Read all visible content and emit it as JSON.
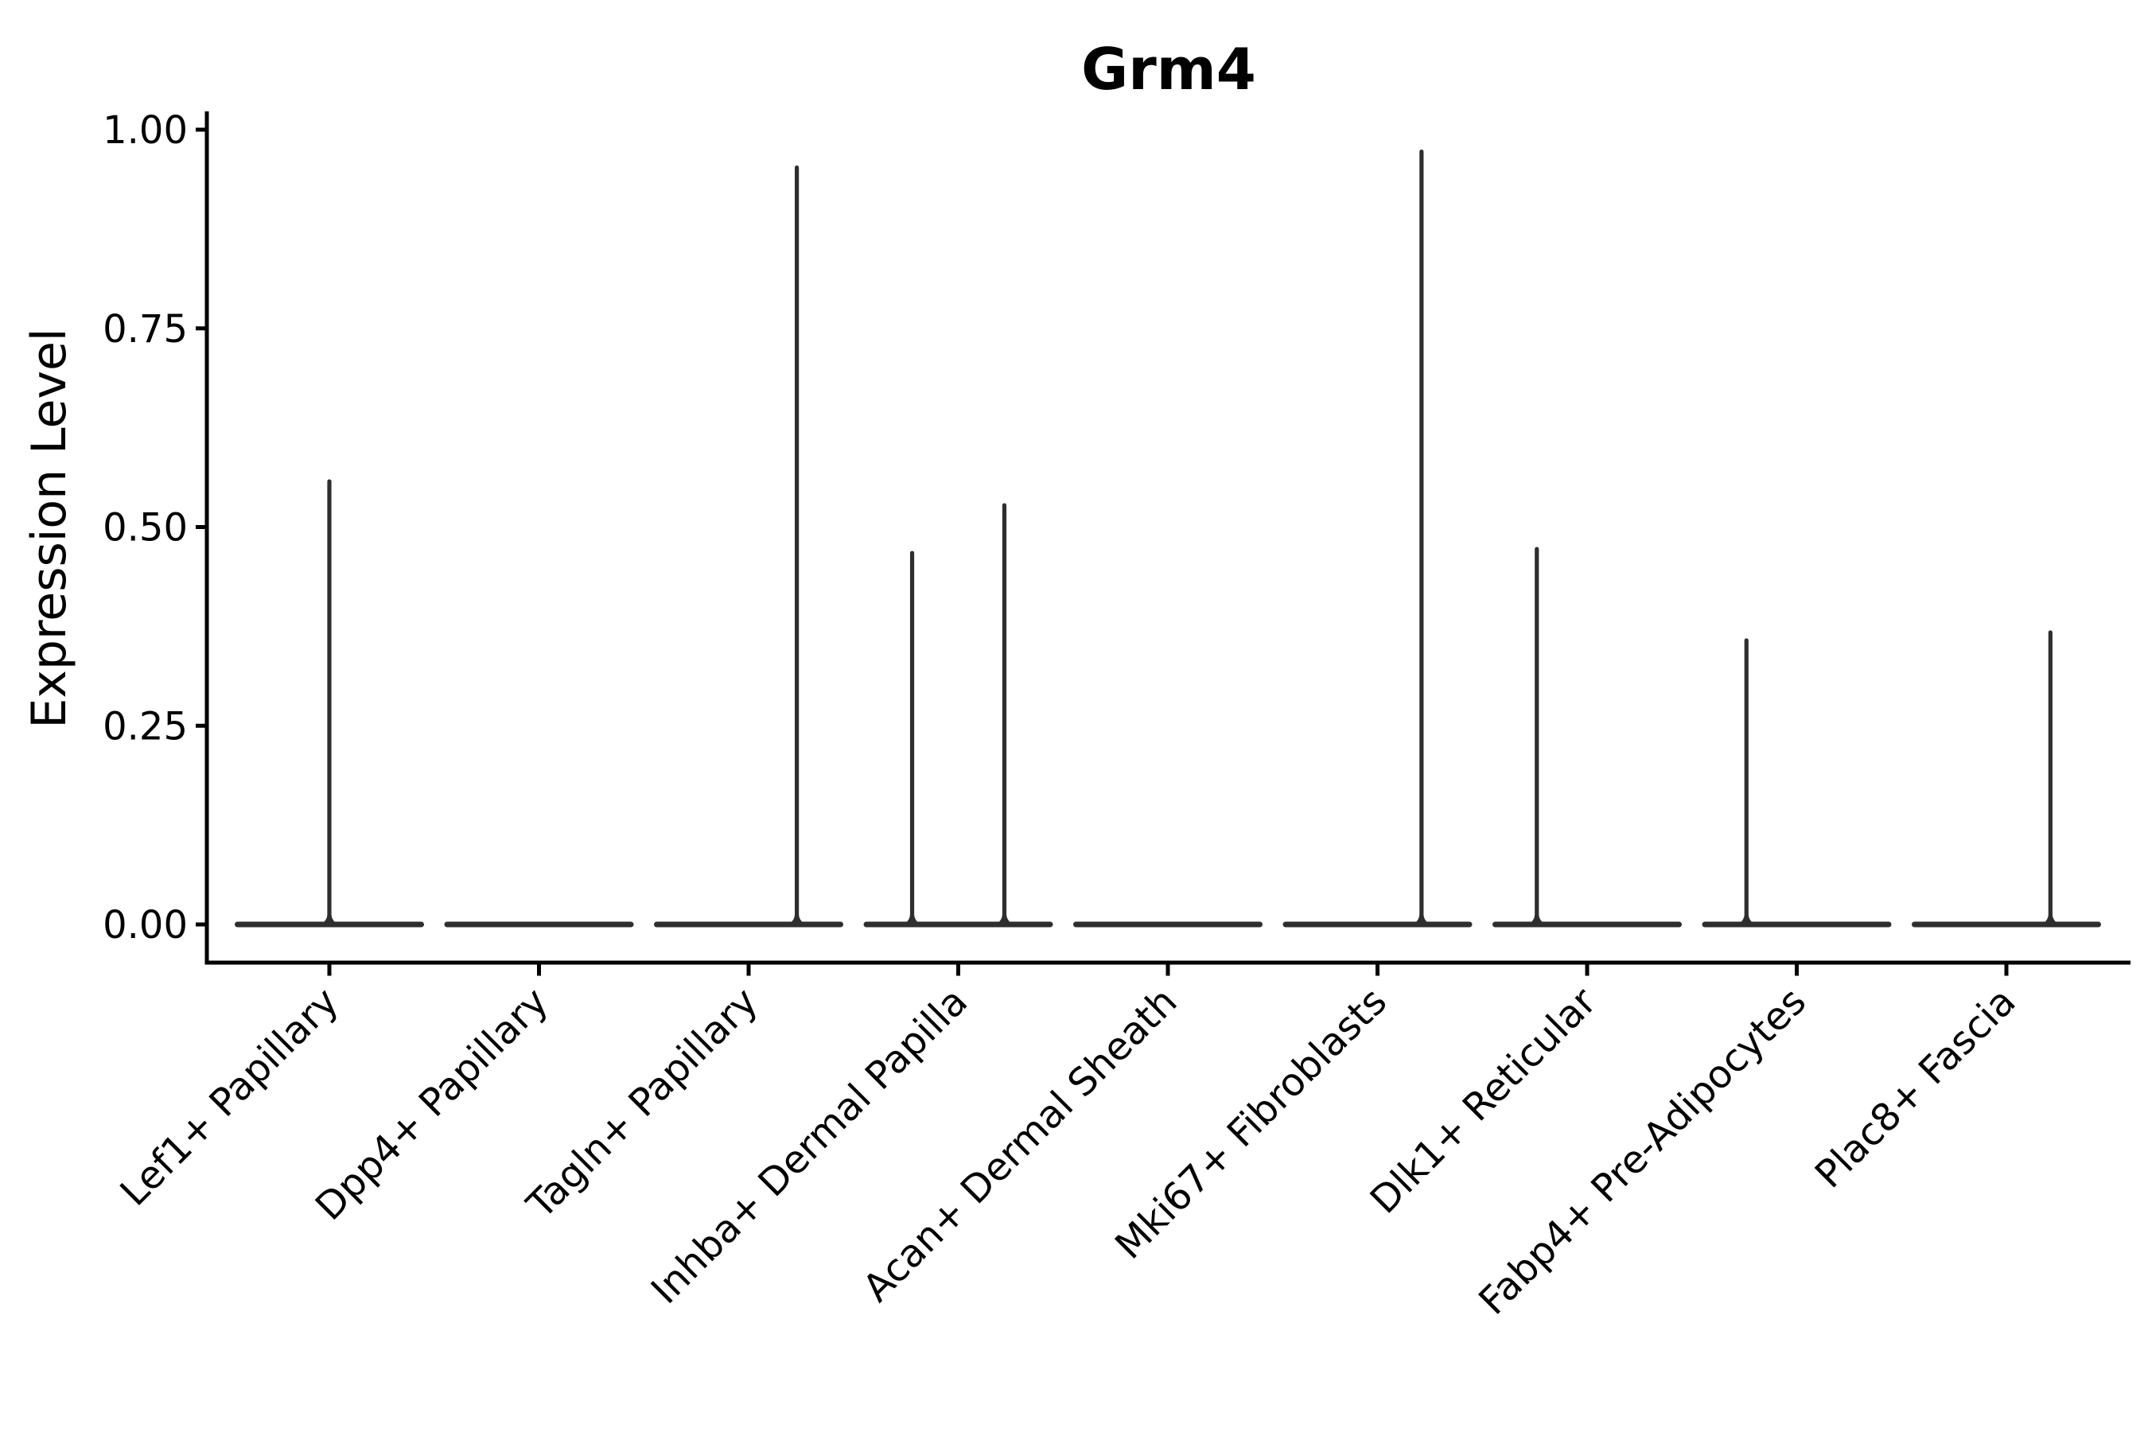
{
  "chart_data": {
    "type": "violin",
    "title": "Grm4",
    "xlabel": "",
    "ylabel": "Expression Level",
    "ylim": [
      0,
      1
    ],
    "yticks": [
      0,
      0.25,
      0.5,
      0.75,
      1.0
    ],
    "ytick_labels": [
      "0.00",
      "0.25",
      "0.50",
      "0.75",
      "1.00"
    ],
    "grid": false,
    "legend": "none",
    "violin_width": 0.9,
    "categories": [
      "Lef1+ Papillary",
      "Dpp4+ Papillary",
      "Tagln+ Papillary",
      "Inhba+ Dermal Papilla",
      "Acan+ Dermal Sheath",
      "Mki67+ Fibroblasts",
      "Dlk1+ Reticular",
      "Fabp4+ Pre-Adipocytes",
      "Plac8+ Fascia"
    ],
    "series": [
      {
        "category": "Lef1+ Papillary",
        "bulk_at": 0.0,
        "spikes": [
          {
            "offset": 0.0,
            "max": 0.56
          }
        ]
      },
      {
        "category": "Dpp4+ Papillary",
        "bulk_at": 0.0,
        "spikes": []
      },
      {
        "category": "Tagln+ Papillary",
        "bulk_at": 0.0,
        "spikes": [
          {
            "offset": 0.23,
            "max": 0.955
          }
        ]
      },
      {
        "category": "Inhba+ Dermal Papilla",
        "bulk_at": 0.0,
        "spikes": [
          {
            "offset": -0.22,
            "max": 0.47
          },
          {
            "offset": 0.22,
            "max": 0.53
          }
        ]
      },
      {
        "category": "Acan+ Dermal Sheath",
        "bulk_at": 0.0,
        "spikes": []
      },
      {
        "category": "Mki67+ Fibroblasts",
        "bulk_at": 0.0,
        "spikes": [
          {
            "offset": 0.21,
            "max": 0.975
          }
        ]
      },
      {
        "category": "Dlk1+ Reticular",
        "bulk_at": 0.0,
        "spikes": [
          {
            "offset": -0.24,
            "max": 0.475
          }
        ]
      },
      {
        "category": "Fabp4+ Pre-Adipocytes",
        "bulk_at": 0.0,
        "spikes": [
          {
            "offset": -0.24,
            "max": 0.36
          }
        ]
      },
      {
        "category": "Plac8+ Fascia",
        "bulk_at": 0.0,
        "spikes": [
          {
            "offset": 0.21,
            "max": 0.37
          }
        ]
      }
    ],
    "colors": {
      "violin": "#2e2e2e",
      "axis": "#000000",
      "text": "#000000",
      "background": "#ffffff"
    }
  }
}
